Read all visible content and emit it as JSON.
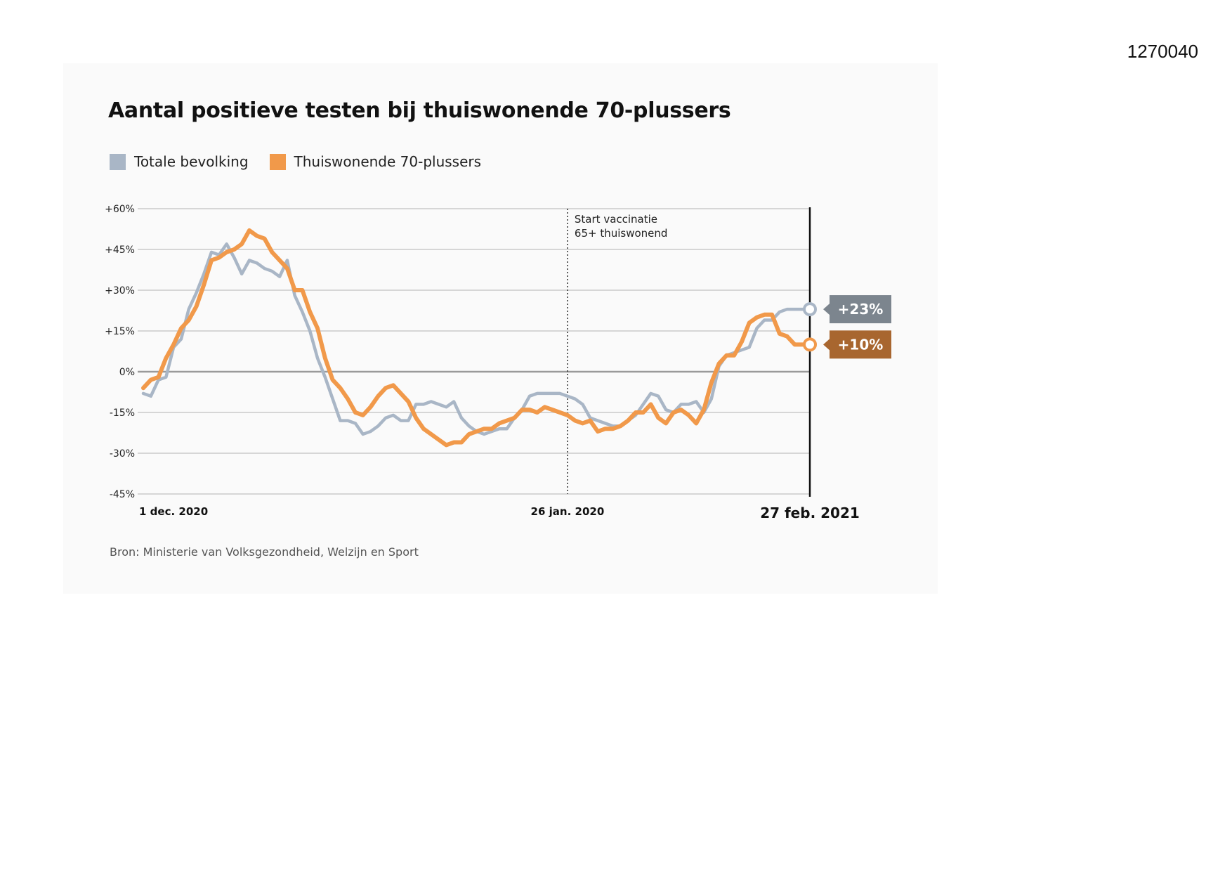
{
  "page": {
    "doc_id": "1270040"
  },
  "chart_data": {
    "type": "line",
    "title": "Aantal positieve testen bij thuiswonende 70-plussers",
    "source": "Bron: Ministerie van Volksgezondheid, Welzijn en Sport",
    "ylim": [
      -45,
      60
    ],
    "yticks": [
      {
        "value": 60,
        "label": "+60%"
      },
      {
        "value": 45,
        "label": "+45%"
      },
      {
        "value": 30,
        "label": "+30%"
      },
      {
        "value": 15,
        "label": "+15%"
      },
      {
        "value": 0,
        "label": "0%"
      },
      {
        "value": -15,
        "label": "-15%"
      },
      {
        "value": -30,
        "label": "-30%"
      },
      {
        "value": -45,
        "label": "-45%"
      }
    ],
    "xlim": [
      0,
      88
    ],
    "xticks": [
      {
        "value": 0,
        "label": "1 dec. 2020"
      },
      {
        "value": 56,
        "label": "26 jan. 2020"
      },
      {
        "value": 88,
        "label": "27 feb. 2021"
      }
    ],
    "annotations": [
      {
        "x": 56,
        "lines": [
          "Start vaccinatie",
          "65+ thuiswonend"
        ]
      }
    ],
    "colors": {
      "grid": "#d6d6d6",
      "zero": "#9a9a9a",
      "end_line": "#111111",
      "dotted": "#333333"
    },
    "series": [
      {
        "name": "Totale bevolking",
        "color": "#a9b6c6",
        "end_label": "+23%",
        "end_value": 23,
        "label_color": "#7c858e",
        "values": [
          -8,
          -9,
          -3,
          -2,
          9,
          12,
          23,
          29,
          36,
          44,
          43,
          47,
          42,
          36,
          41,
          40,
          38,
          37,
          35,
          41,
          28,
          22,
          15,
          5,
          -2,
          -10,
          -18,
          -18,
          -19,
          -23,
          -22,
          -20,
          -17,
          -16,
          -18,
          -18,
          -12,
          -12,
          -11,
          -12,
          -13,
          -11,
          -17,
          -20,
          -22,
          -23,
          -22,
          -21,
          -21,
          -17,
          -14,
          -9,
          -8,
          -8,
          -8,
          -8,
          -9,
          -10,
          -12,
          -17,
          -18,
          -19,
          -20,
          -20,
          -18,
          -16,
          -12,
          -8,
          -9,
          -14,
          -15,
          -12,
          -12,
          -11,
          -15,
          -10,
          2,
          6,
          7,
          8,
          9,
          16,
          19,
          19,
          22,
          23,
          23,
          23,
          23
        ]
      },
      {
        "name": "Thuiswonende 70-plussers",
        "color": "#f1994a",
        "end_label": "+10%",
        "end_value": 10,
        "label_color": "#a8662f",
        "values": [
          -6,
          -3,
          -2,
          5,
          10,
          16,
          19,
          24,
          32,
          41,
          42,
          44,
          45,
          47,
          52,
          50,
          49,
          44,
          41,
          38,
          30,
          30,
          22,
          16,
          5,
          -3,
          -6,
          -10,
          -15,
          -16,
          -13,
          -9,
          -6,
          -5,
          -8,
          -11,
          -17,
          -21,
          -23,
          -25,
          -27,
          -26,
          -26,
          -23,
          -22,
          -21,
          -21,
          -19,
          -18,
          -17,
          -14,
          -14,
          -15,
          -13,
          -14,
          -15,
          -16,
          -18,
          -19,
          -18,
          -22,
          -21,
          -21,
          -20,
          -18,
          -15,
          -15,
          -12,
          -17,
          -19,
          -15,
          -14,
          -16,
          -19,
          -14,
          -4,
          3,
          6,
          6,
          11,
          18,
          20,
          21,
          21,
          14,
          13,
          10,
          10,
          10
        ]
      }
    ]
  }
}
